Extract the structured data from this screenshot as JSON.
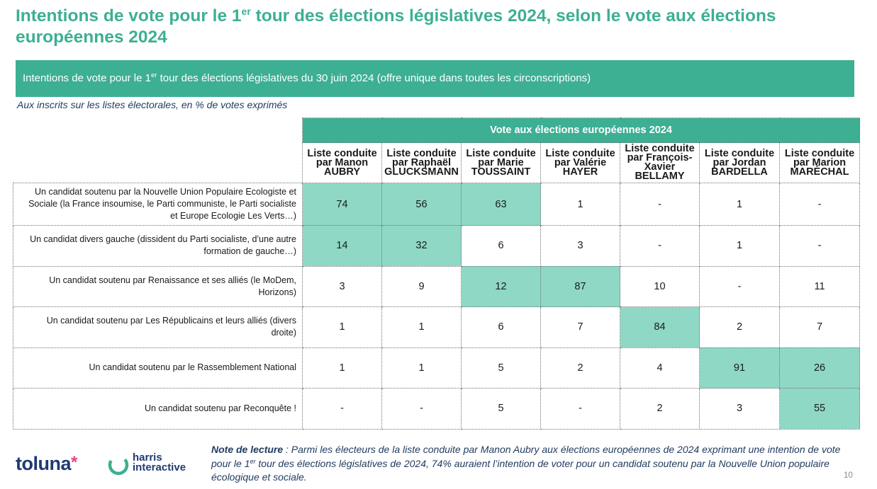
{
  "title": {
    "part1": "Intentions de vote pour le 1",
    "sup": "er",
    "part2": " tour des élections législatives 2024, selon le vote aux élections européennes 2024"
  },
  "banner": {
    "part1": "Intentions de vote pour le 1",
    "sup": "er",
    "part2": " tour des élections législatives du 30 juin 2024 (offre unique dans toutes les circonscriptions)"
  },
  "subtitle": "Aux inscrits sur les listes électorales, en % de votes exprimés",
  "table": {
    "group_header": "Vote aux élections européennes 2024",
    "columns": [
      "Liste conduite par Manon AUBRY",
      "Liste conduite par Raphaël GLUCKSMANN",
      "Liste conduite par Marie TOUSSAINT",
      "Liste conduite par Valérie HAYER",
      "Liste conduite par François-Xavier BELLAMY",
      "Liste conduite par Jordan BARDELLA",
      "Liste conduite par Marion MARÉCHAL"
    ],
    "rows": [
      {
        "label": "Un candidat soutenu par la Nouvelle Union Populaire Ecologiste et Sociale (la France insoumise, le Parti communiste, le Parti socialiste et Europe Ecologie Les Verts…)",
        "values": [
          "74",
          "56",
          "63",
          "1",
          "-",
          "1",
          "-"
        ],
        "highlight": [
          true,
          true,
          true,
          false,
          false,
          false,
          false
        ]
      },
      {
        "label": "Un candidat divers gauche (dissident du Parti socialiste, d’une autre formation de gauche…)",
        "values": [
          "14",
          "32",
          "6",
          "3",
          "-",
          "1",
          "-"
        ],
        "highlight": [
          true,
          true,
          false,
          false,
          false,
          false,
          false
        ]
      },
      {
        "label": "Un candidat soutenu par Renaissance et ses alliés (le MoDem, Horizons)",
        "values": [
          "3",
          "9",
          "12",
          "87",
          "10",
          "-",
          "11"
        ],
        "highlight": [
          false,
          false,
          true,
          true,
          false,
          false,
          false
        ]
      },
      {
        "label": "Un candidat soutenu par Les Républicains et leurs alliés (divers droite)",
        "values": [
          "1",
          "1",
          "6",
          "7",
          "84",
          "2",
          "7"
        ],
        "highlight": [
          false,
          false,
          false,
          false,
          true,
          false,
          false
        ]
      },
      {
        "label": "Un candidat soutenu par le Rassemblement National",
        "values": [
          "1",
          "1",
          "5",
          "2",
          "4",
          "91",
          "26"
        ],
        "highlight": [
          false,
          false,
          false,
          false,
          false,
          true,
          true
        ]
      },
      {
        "label": "Un candidat soutenu par Reconquête !",
        "values": [
          "-",
          "-",
          "5",
          "-",
          "2",
          "3",
          "55"
        ],
        "highlight": [
          false,
          false,
          false,
          false,
          false,
          false,
          true
        ]
      }
    ]
  },
  "footer": {
    "logo_toluna": "toluna",
    "logo_toluna_star": "*",
    "logo_harris_line1": "harris",
    "logo_harris_line2": "interactive",
    "note_label": "Note de lecture",
    "note_part1": " : Parmi les électeurs de la liste conduite par Manon Aubry aux élections européennes de 2024 exprimant une intention de vote pour le 1",
    "note_sup": "er",
    "note_part2": " tour des élections législatives de 2024, 74% auraient l’intention de voter pour un candidat soutenu par la Nouvelle Union populaire écologique et sociale.",
    "page_number": "10"
  },
  "colors": {
    "accent": "#3daf93",
    "highlight_cell": "#8fd8c6",
    "note_text": "#1f3a5f",
    "logo_navy": "#1f3a73",
    "logo_pink": "#e8447a"
  }
}
